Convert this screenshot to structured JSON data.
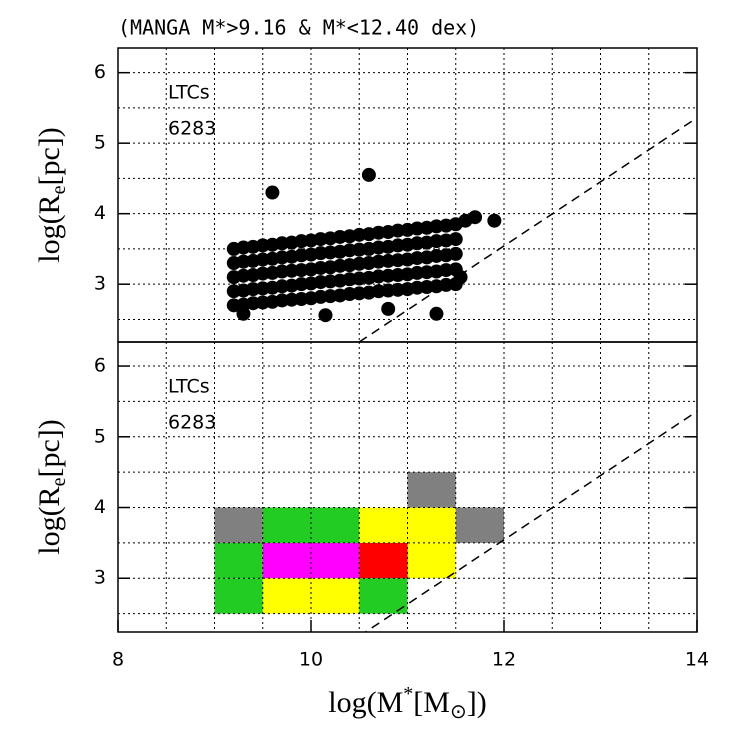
{
  "chart_data": [
    {
      "type": "scatter",
      "title": "(MANGA M*>9.16 & M*<12.40 dex)",
      "ylabel": {
        "main": "log(R",
        "sub": "e",
        "rest": "[pc])"
      },
      "annotations": [
        "LTCs",
        "6283"
      ],
      "xlim": [
        8,
        14
      ],
      "ylim": [
        2.18,
        6.35
      ],
      "xgrid": [
        8.5,
        9,
        9.5,
        10,
        10.5,
        11,
        11.5,
        12,
        12.5,
        13,
        13.5
      ],
      "ygrid": [
        2.5,
        3,
        3.5,
        4,
        4.5,
        5,
        5.5,
        6
      ],
      "yticks": [
        3,
        4,
        5,
        6
      ],
      "color": "#000000",
      "reference_line": {
        "x": [
          10.5,
          14
        ],
        "y": [
          2.18,
          5.36
        ],
        "dash": true
      },
      "x": [
        9.2,
        9.2,
        9.2,
        9.2,
        9.2,
        9.3,
        9.3,
        9.3,
        9.3,
        9.3,
        9.4,
        9.4,
        9.4,
        9.4,
        9.4,
        9.5,
        9.5,
        9.5,
        9.5,
        9.5,
        9.6,
        9.6,
        9.6,
        9.6,
        9.6,
        9.7,
        9.7,
        9.7,
        9.7,
        9.7,
        9.8,
        9.8,
        9.8,
        9.8,
        9.8,
        9.9,
        9.9,
        9.9,
        9.9,
        9.9,
        10.0,
        10.0,
        10.0,
        10.0,
        10.0,
        10.1,
        10.1,
        10.1,
        10.1,
        10.1,
        10.2,
        10.2,
        10.2,
        10.2,
        10.2,
        10.3,
        10.3,
        10.3,
        10.3,
        10.3,
        10.4,
        10.4,
        10.4,
        10.4,
        10.4,
        10.5,
        10.5,
        10.5,
        10.5,
        10.5,
        10.6,
        10.6,
        10.6,
        10.6,
        10.6,
        10.7,
        10.7,
        10.7,
        10.7,
        10.7,
        10.8,
        10.8,
        10.8,
        10.8,
        10.8,
        10.9,
        10.9,
        10.9,
        10.9,
        10.9,
        11.0,
        11.0,
        11.0,
        11.0,
        11.0,
        11.1,
        11.1,
        11.1,
        11.1,
        11.1,
        11.2,
        11.2,
        11.2,
        11.2,
        11.2,
        11.3,
        11.3,
        11.3,
        11.3,
        11.3,
        11.4,
        11.4,
        11.4,
        11.4,
        11.4,
        11.5,
        11.5,
        11.5,
        11.5,
        11.5,
        10.6,
        9.6,
        11.9,
        11.7,
        11.3,
        10.15,
        11.6,
        9.3,
        10.8,
        11.55
      ],
      "y": [
        2.7,
        2.9,
        3.1,
        3.3,
        3.5,
        2.71,
        2.91,
        3.12,
        3.32,
        3.52,
        2.73,
        2.93,
        3.13,
        3.33,
        3.53,
        2.74,
        2.94,
        3.15,
        3.35,
        3.55,
        2.75,
        2.95,
        3.16,
        3.36,
        3.56,
        2.77,
        2.97,
        3.18,
        3.38,
        3.58,
        2.78,
        2.98,
        3.19,
        3.39,
        3.59,
        2.79,
        3.0,
        3.2,
        3.41,
        3.61,
        2.8,
        3.01,
        3.21,
        3.42,
        3.62,
        2.82,
        3.03,
        3.23,
        3.44,
        3.64,
        2.83,
        3.04,
        3.24,
        3.45,
        3.65,
        2.84,
        3.05,
        3.26,
        3.46,
        3.67,
        2.86,
        3.07,
        3.27,
        3.48,
        3.68,
        2.87,
        3.08,
        3.29,
        3.49,
        3.7,
        2.88,
        3.09,
        3.3,
        3.5,
        3.71,
        2.9,
        3.11,
        3.32,
        3.52,
        3.73,
        2.91,
        3.12,
        3.33,
        3.53,
        3.74,
        2.92,
        3.13,
        3.34,
        3.55,
        3.76,
        2.93,
        3.14,
        3.35,
        3.56,
        3.77,
        2.95,
        3.16,
        3.37,
        3.58,
        3.79,
        2.96,
        3.17,
        3.38,
        3.59,
        3.8,
        2.97,
        3.18,
        3.4,
        3.61,
        3.82,
        2.99,
        3.2,
        3.41,
        3.62,
        3.83,
        3.0,
        3.21,
        3.43,
        3.64,
        3.85,
        4.55,
        4.3,
        3.9,
        3.95,
        2.58,
        2.56,
        3.9,
        2.58,
        2.65,
        3.1
      ]
    },
    {
      "type": "heatmap",
      "ylabel": {
        "main": "log(R",
        "sub": "e",
        "rest": "[pc])"
      },
      "xlabel": {
        "main": "log(M",
        "sup": "*",
        "mid": "[M",
        "sub": "⊙",
        "rest": "])"
      },
      "annotations": [
        "LTCs",
        "6283"
      ],
      "xlim": [
        8,
        14
      ],
      "ylim": [
        2.24,
        6.34
      ],
      "xticks": [
        8,
        10,
        12,
        14
      ],
      "xgrid": [
        8.5,
        9,
        9.5,
        10,
        10.5,
        11,
        11.5,
        12,
        12.5,
        13,
        13.5
      ],
      "ygrid": [
        2.5,
        3,
        3.5,
        4,
        4.5,
        5,
        5.5,
        6
      ],
      "yticks": [
        3,
        4,
        5,
        6
      ],
      "bin_width": 0.5,
      "reference_line": {
        "x": [
          10.5,
          14
        ],
        "y": [
          2.18,
          5.36
        ],
        "dash": true
      },
      "cells": [
        {
          "x": 9,
          "y": 2.5,
          "color": "#22cc22"
        },
        {
          "x": 9.5,
          "y": 2.5,
          "color": "#ffff00"
        },
        {
          "x": 10,
          "y": 2.5,
          "color": "#ffff00"
        },
        {
          "x": 10.5,
          "y": 2.5,
          "color": "#22cc22"
        },
        {
          "x": 9,
          "y": 3,
          "color": "#22cc22"
        },
        {
          "x": 9.5,
          "y": 3,
          "color": "#ff00ff"
        },
        {
          "x": 10,
          "y": 3,
          "color": "#ff00ff"
        },
        {
          "x": 10.5,
          "y": 3,
          "color": "#ff0000"
        },
        {
          "x": 11,
          "y": 3,
          "color": "#ffff00"
        },
        {
          "x": 9,
          "y": 3.5,
          "color": "#808080"
        },
        {
          "x": 9.5,
          "y": 3.5,
          "color": "#22cc22"
        },
        {
          "x": 10,
          "y": 3.5,
          "color": "#22cc22"
        },
        {
          "x": 10.5,
          "y": 3.5,
          "color": "#ffff00"
        },
        {
          "x": 11,
          "y": 3.5,
          "color": "#ffff00"
        },
        {
          "x": 11.5,
          "y": 3.5,
          "color": "#808080"
        },
        {
          "x": 11,
          "y": 4,
          "color": "#808080"
        }
      ]
    }
  ]
}
